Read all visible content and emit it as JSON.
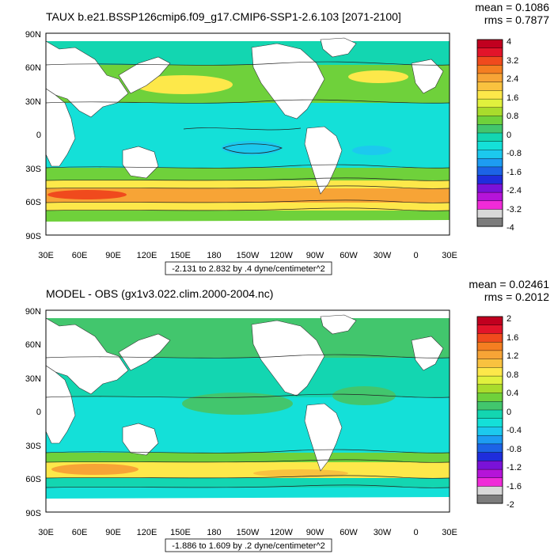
{
  "panels": [
    {
      "title": "TAUX b.e21.BSSP126cmip6.f09_g17.CMIP6-SSP1-2.6.103 [2071-2100]",
      "mean_text": "mean = 0.1086",
      "rms_text": "rms = 0.7877",
      "range_text": "-2.131 to 2.832 by .4 dyne/centimeter^2",
      "lat_labels": [
        "90N",
        "60N",
        "30N",
        "0",
        "30S",
        "60S",
        "90S"
      ],
      "lon_labels": [
        "30E",
        "60E",
        "90E",
        "120E",
        "150E",
        "180",
        "150W",
        "120W",
        "90W",
        "60W",
        "30W",
        "0",
        "30E"
      ],
      "colorbar": {
        "labels": [
          "4",
          "3.2",
          "2.4",
          "1.6",
          "0.8",
          "0",
          "-0.8",
          "-1.6",
          "-2.4",
          "-3.2",
          "-4"
        ],
        "colors": [
          "#c1001f",
          "#e2142a",
          "#f04a1d",
          "#f47e21",
          "#f7a436",
          "#f9c23f",
          "#fde84a",
          "#e1f13d",
          "#a9dc2c",
          "#6fd13b",
          "#42c66d",
          "#13d6b1",
          "#14e0d8",
          "#1cc9ee",
          "#1d9cf2",
          "#1c63e6",
          "#1f2ddc",
          "#7a12d8",
          "#b514d9",
          "#f02bd8",
          "#d8d8d8",
          "#7c7c7c"
        ]
      }
    },
    {
      "title": "MODEL - OBS (gx1v3.022.clim.2000-2004.nc)",
      "mean_text": "mean = 0.02461",
      "rms_text": "rms = 0.2012",
      "range_text": "-1.886 to 1.609 by .2 dyne/centimeter^2",
      "lat_labels": [
        "90N",
        "60N",
        "30N",
        "0",
        "30S",
        "60S",
        "90S"
      ],
      "lon_labels": [
        "30E",
        "60E",
        "90E",
        "120E",
        "150E",
        "180",
        "150W",
        "120W",
        "90W",
        "60W",
        "30W",
        "0",
        "30E"
      ],
      "colorbar": {
        "labels": [
          "2",
          "1.6",
          "1.2",
          "0.8",
          "0.4",
          "0",
          "-0.4",
          "-0.8",
          "-1.2",
          "-1.6",
          "-2"
        ],
        "colors": [
          "#c1001f",
          "#e2142a",
          "#f04a1d",
          "#f47e21",
          "#f7a436",
          "#f9c23f",
          "#fde84a",
          "#e1f13d",
          "#a9dc2c",
          "#6fd13b",
          "#42c66d",
          "#13d6b1",
          "#14e0d8",
          "#1cc9ee",
          "#1d9cf2",
          "#1c63e6",
          "#1f2ddc",
          "#7a12d8",
          "#b514d9",
          "#f02bd8",
          "#d8d8d8",
          "#7c7c7c"
        ]
      }
    }
  ]
}
